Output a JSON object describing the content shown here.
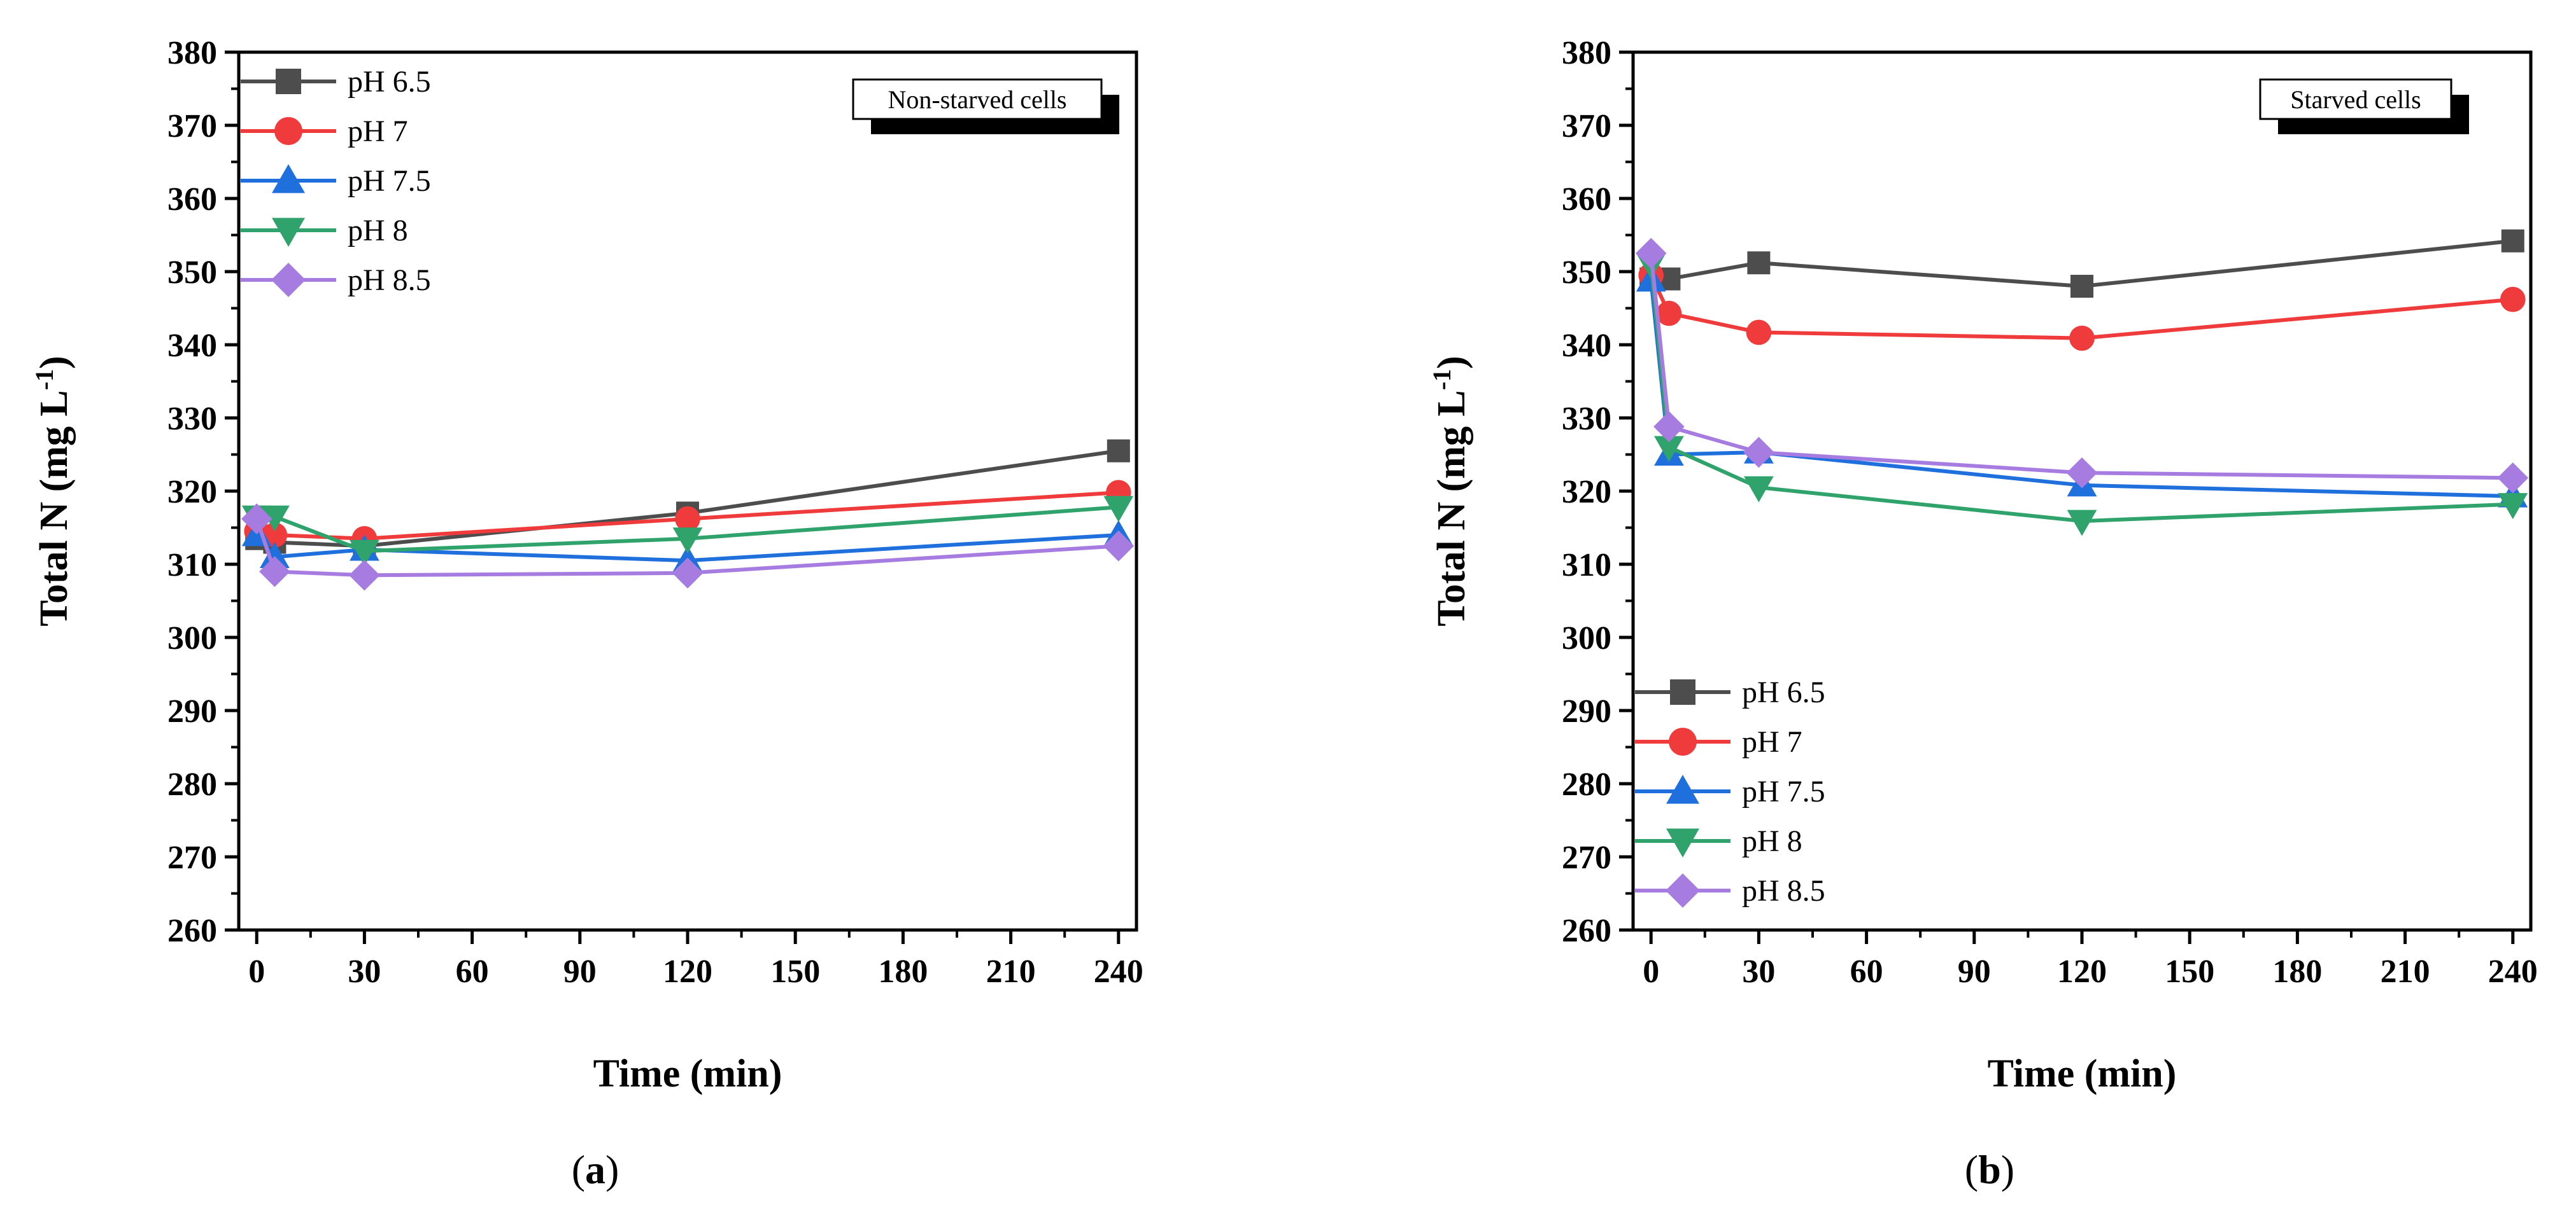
{
  "colors": {
    "pH 6.5": "#4d4d4d",
    "pH 7": "#ef3b3b",
    "pH 7.5": "#1f6fdc",
    "pH 8": "#2fa36b",
    "pH 8.5": "#a77ce0"
  },
  "chart_data": [
    {
      "type": "line",
      "panel_label": "a",
      "annotation": "Non-starved cells",
      "xlabel": "Time (min)",
      "ylabel_main": "Total N (mg L",
      "ylabel_sup": "-1",
      "ylabel_tail": ")",
      "xlim": [
        -5,
        245
      ],
      "ylim": [
        260,
        380
      ],
      "xticks": [
        0,
        30,
        60,
        90,
        120,
        150,
        180,
        210,
        240
      ],
      "yticks": [
        260,
        270,
        280,
        290,
        300,
        310,
        320,
        330,
        340,
        350,
        360,
        370,
        380
      ],
      "legend_position": "top-left",
      "series": [
        {
          "name": "pH 6.5",
          "marker": "square",
          "x": [
            0,
            5,
            30,
            120,
            240
          ],
          "y": [
            313.5,
            313.0,
            312.5,
            317.0,
            325.5
          ]
        },
        {
          "name": "pH 7",
          "marker": "circle",
          "x": [
            0,
            5,
            30,
            120,
            240
          ],
          "y": [
            314.5,
            314.0,
            313.5,
            316.2,
            319.8
          ]
        },
        {
          "name": "pH 7.5",
          "marker": "triangle-up",
          "x": [
            0,
            5,
            30,
            120,
            240
          ],
          "y": [
            314.0,
            311.0,
            312.0,
            310.5,
            314.0
          ]
        },
        {
          "name": "pH 8",
          "marker": "triangle-down",
          "x": [
            0,
            5,
            30,
            120,
            240
          ],
          "y": [
            316.5,
            316.5,
            311.8,
            313.5,
            317.8
          ]
        },
        {
          "name": "pH 8.5",
          "marker": "diamond",
          "x": [
            0,
            5,
            30,
            120,
            240
          ],
          "y": [
            316.2,
            309.0,
            308.5,
            308.8,
            312.5
          ]
        }
      ]
    },
    {
      "type": "line",
      "panel_label": "b",
      "annotation": "Starved cells",
      "xlabel": "Time (min)",
      "ylabel_main": "Total N (mg L",
      "ylabel_sup": "-1",
      "ylabel_tail": ")",
      "xlim": [
        -5,
        245
      ],
      "ylim": [
        260,
        380
      ],
      "xticks": [
        0,
        30,
        60,
        90,
        120,
        150,
        180,
        210,
        240
      ],
      "yticks": [
        260,
        270,
        280,
        290,
        300,
        310,
        320,
        330,
        340,
        350,
        360,
        370,
        380
      ],
      "legend_position": "bottom-left",
      "series": [
        {
          "name": "pH 6.5",
          "marker": "square",
          "x": [
            0,
            5,
            30,
            120,
            240
          ],
          "y": [
            349.0,
            349.0,
            351.2,
            348.0,
            354.2
          ]
        },
        {
          "name": "pH 7",
          "marker": "circle",
          "x": [
            0,
            5,
            30,
            120,
            240
          ],
          "y": [
            349.5,
            344.3,
            341.7,
            340.9,
            346.2
          ]
        },
        {
          "name": "pH 7.5",
          "marker": "triangle-up",
          "x": [
            0,
            5,
            30,
            120,
            240
          ],
          "y": [
            348.8,
            325.0,
            325.3,
            320.8,
            319.3
          ]
        },
        {
          "name": "pH 8",
          "marker": "triangle-down",
          "x": [
            0,
            5,
            30,
            120,
            240
          ],
          "y": [
            351.0,
            326.0,
            320.5,
            315.9,
            318.2
          ]
        },
        {
          "name": "pH 8.5",
          "marker": "diamond",
          "x": [
            0,
            5,
            30,
            120,
            240
          ],
          "y": [
            352.5,
            328.8,
            325.3,
            322.5,
            321.8
          ]
        }
      ]
    }
  ]
}
